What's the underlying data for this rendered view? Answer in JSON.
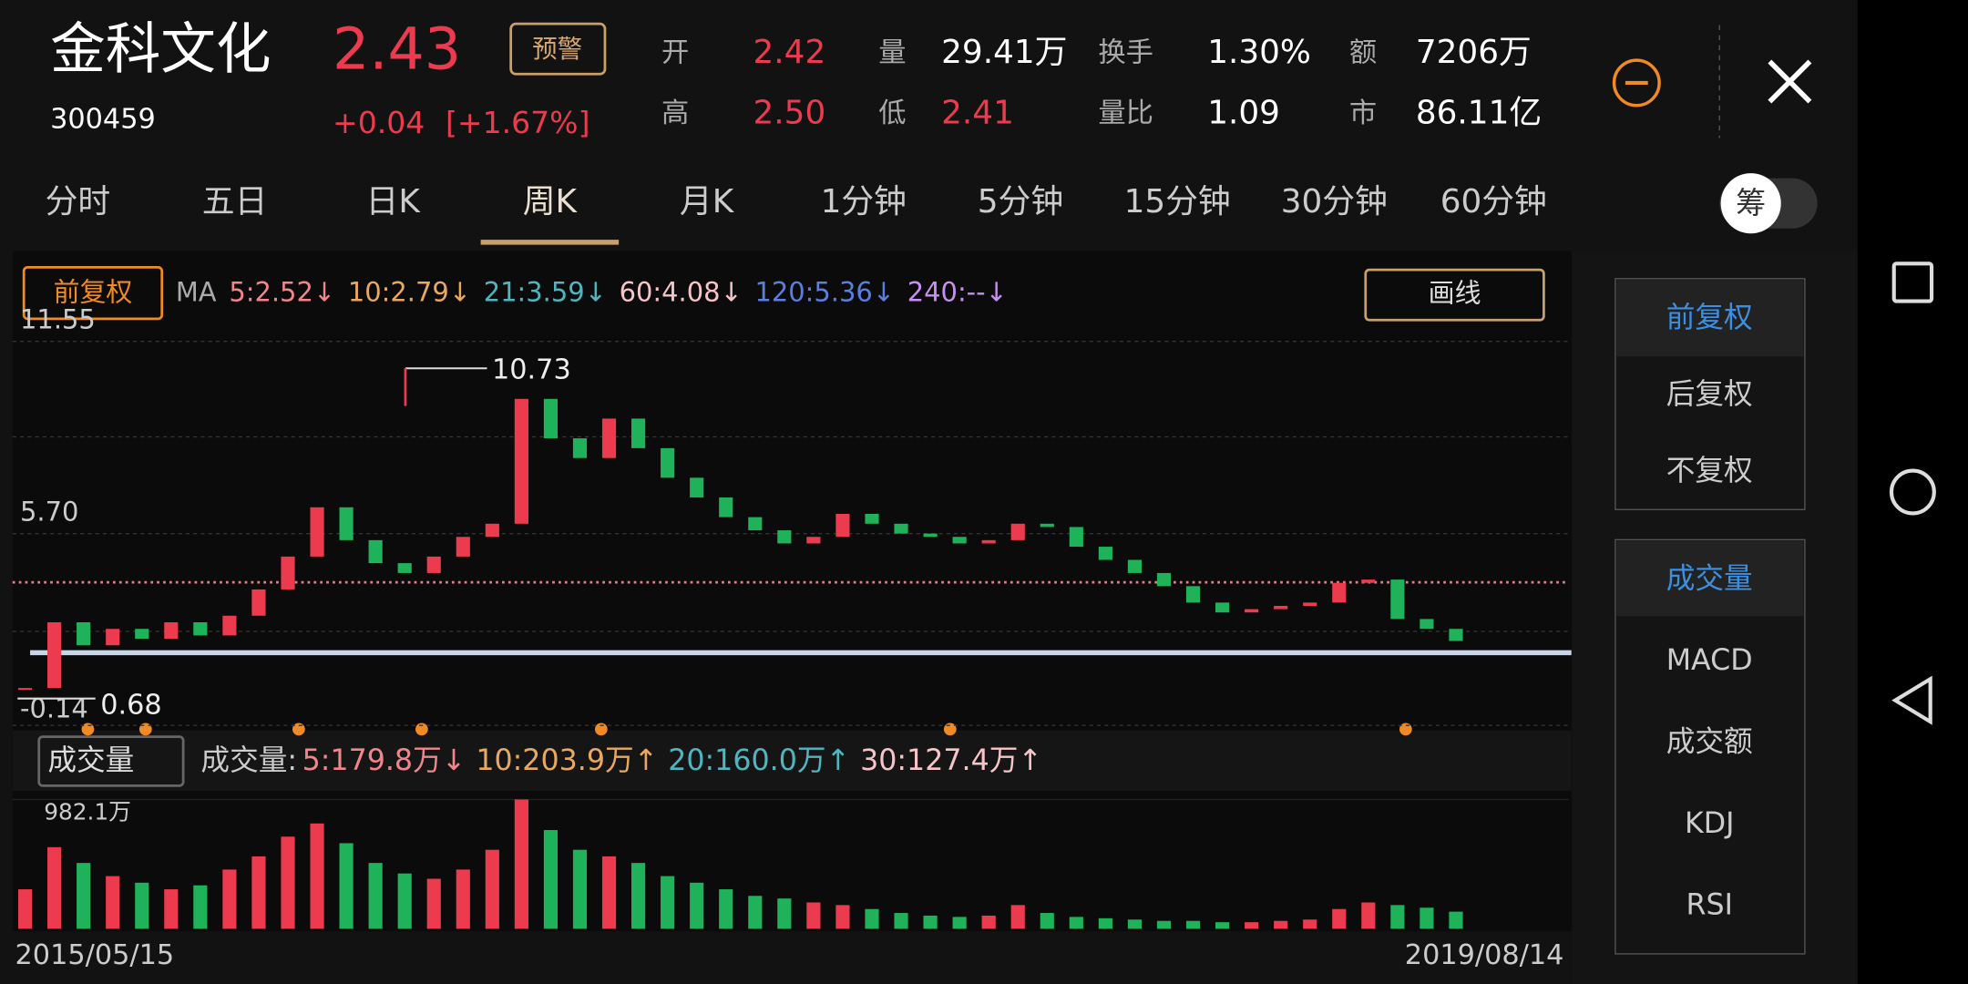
{
  "header": {
    "name": "金科文化",
    "code": "300459",
    "price": "2.43",
    "change": "+0.04",
    "change_pct": "[+1.67%]",
    "alert_button": "预警",
    "stats": [
      {
        "label": "开",
        "value": "2.42",
        "color": "#ec3b4e"
      },
      {
        "label": "高",
        "value": "2.50",
        "color": "#ec3b4e"
      },
      {
        "label": "量",
        "value": "29.41万",
        "color": "#ffffff"
      },
      {
        "label": "低",
        "value": "2.41",
        "color": "#ec3b4e"
      },
      {
        "label": "换手",
        "value": "1.30%",
        "color": "#ffffff"
      },
      {
        "label": "量比",
        "value": "1.09",
        "color": "#ffffff"
      },
      {
        "label": "额",
        "value": "7206万",
        "color": "#ffffff"
      },
      {
        "label": "市",
        "value": "86.11亿",
        "color": "#ffffff"
      }
    ]
  },
  "tabs": [
    "分时",
    "五日",
    "日K",
    "周K",
    "月K",
    "1分钟",
    "5分钟",
    "15分钟",
    "30分钟",
    "60分钟"
  ],
  "active_tab": 3,
  "chip_toggle": "筹",
  "chart_toolbar": {
    "adjust_button": "前复权",
    "ma_label": "MA",
    "ma": [
      {
        "text": "5:2.52↓",
        "color": "#f0868c"
      },
      {
        "text": "10:2.79↓",
        "color": "#e9a860"
      },
      {
        "text": "21:3.59↓",
        "color": "#4fb6c0"
      },
      {
        "text": "60:4.08↓",
        "color": "#f7c4c8"
      },
      {
        "text": "120:5.36↓",
        "color": "#5b7fe0"
      },
      {
        "text": "240:--↓",
        "color": "#c790f0"
      }
    ],
    "draw_button": "画线"
  },
  "volume_toolbar": {
    "dropdown": "成交量",
    "label": "成交量:",
    "ma": [
      {
        "text": "5:179.8万↓",
        "color": "#f0868c"
      },
      {
        "text": "10:203.9万↑",
        "color": "#e9a860"
      },
      {
        "text": "20:160.0万↑",
        "color": "#4fb6c0"
      },
      {
        "text": "30:127.4万↑",
        "color": "#f7c4c8"
      }
    ]
  },
  "side_menu": {
    "adjust": [
      "前复权",
      "后复权",
      "不复权"
    ],
    "indicators": [
      "成交量",
      "MACD",
      "成交额",
      "KDJ",
      "RSI"
    ]
  },
  "chart_data": [
    {
      "type": "candlestick",
      "values": [
        1.0,
        3.0,
        2.3,
        2.8,
        2.5,
        3.0,
        2.6,
        3.2,
        4.0,
        5.0,
        6.5,
        5.5,
        4.8,
        4.5,
        5.0,
        5.6,
        6.0,
        9.8,
        8.6,
        8.0,
        9.2,
        8.3,
        7.4,
        6.8,
        6.2,
        5.8,
        5.4,
        5.6,
        6.3,
        6.0,
        5.7,
        5.6,
        5.4,
        5.5,
        6.0,
        5.9,
        5.3,
        4.9,
        4.5,
        4.1,
        3.6,
        3.3,
        3.4,
        3.5,
        3.6,
        4.2,
        4.3,
        3.1,
        2.8,
        2.43
      ],
      "up_color": "#ec3b4e",
      "down_color": "#1fb25a",
      "ylim": [
        -0.14,
        11.55
      ],
      "yticks": [
        11.55,
        {
          "value": 5.7,
          "label": "5.70"
        },
        -0.14
      ],
      "max": 10.73,
      "min": 0.68
    },
    {
      "type": "bar",
      "categories": [
        "2015/05/15",
        null,
        null,
        null,
        null,
        null,
        null,
        null,
        null,
        null,
        null,
        null,
        null,
        null,
        null,
        null,
        null,
        null,
        null,
        null,
        null,
        null,
        null,
        null,
        null,
        null,
        null,
        null,
        null,
        null,
        null,
        null,
        null,
        null,
        null,
        null,
        null,
        null,
        null,
        null,
        null,
        null,
        null,
        null,
        null,
        null,
        null,
        null,
        null,
        "2019/08/14"
      ],
      "values": [
        300,
        620,
        500,
        400,
        350,
        300,
        330,
        450,
        550,
        700,
        800,
        650,
        500,
        420,
        380,
        450,
        600,
        982.1,
        750,
        600,
        550,
        500,
        400,
        350,
        300,
        250,
        230,
        200,
        180,
        150,
        120,
        100,
        90,
        100,
        180,
        120,
        90,
        80,
        70,
        60,
        60,
        50,
        50,
        60,
        70,
        150,
        200,
        180,
        160,
        130
      ],
      "ylim": [
        0,
        982.1
      ],
      "yticks": [
        {
          "value": 982.1,
          "label": "982.1万"
        }
      ]
    }
  ]
}
